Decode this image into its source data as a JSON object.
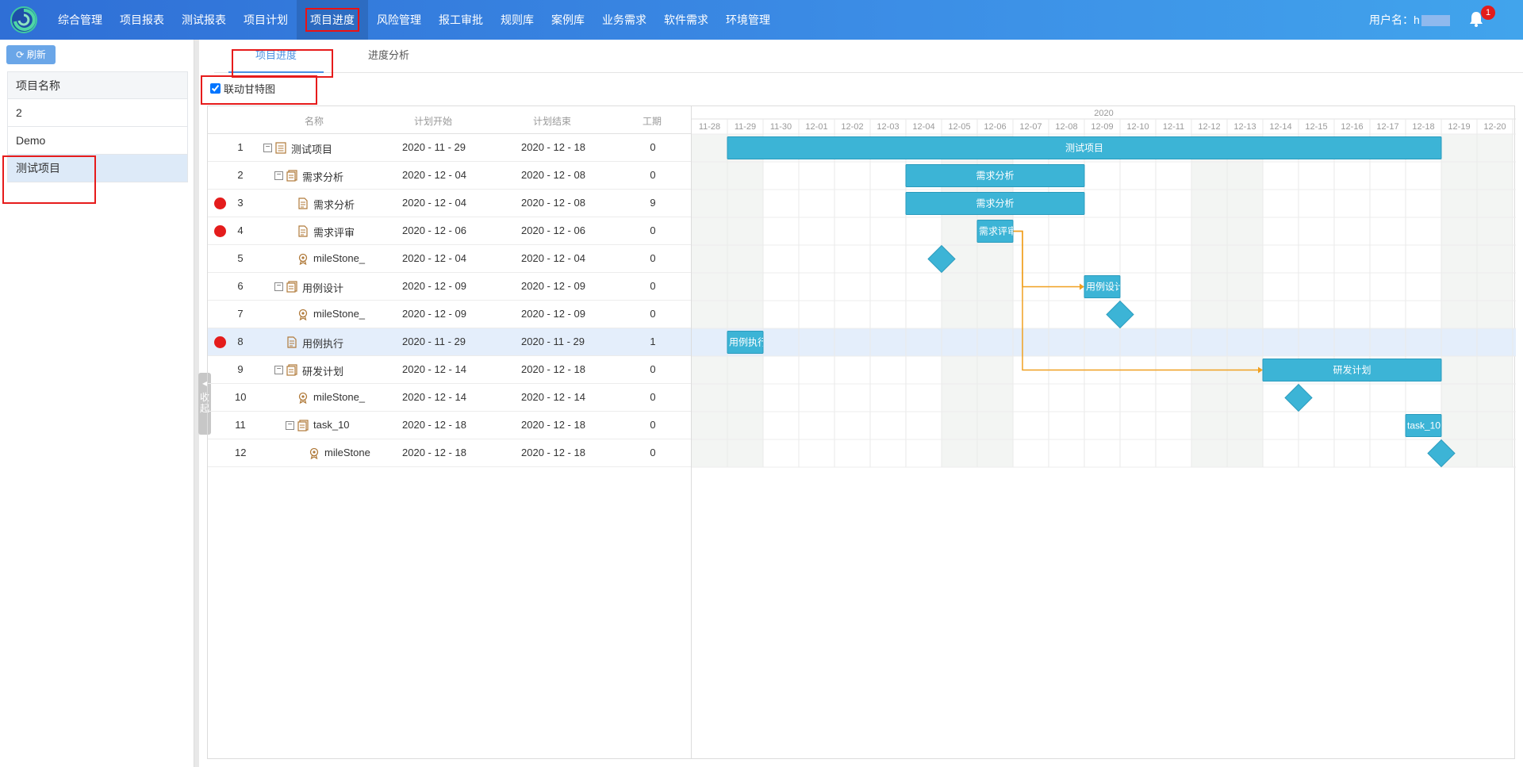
{
  "nav": {
    "items": [
      "综合管理",
      "项目报表",
      "测试报表",
      "项目计划",
      "项目进度",
      "风险管理",
      "报工审批",
      "规则库",
      "案例库",
      "业务需求",
      "软件需求",
      "环境管理"
    ],
    "active_index": 4,
    "user_label": "用户名：h",
    "notification_count": "1"
  },
  "left": {
    "refresh_label": "刷新",
    "list_header": "项目名称",
    "projects": [
      "2",
      "Demo",
      "测试项目"
    ],
    "selected_index": 2,
    "collapse_label": "收起"
  },
  "tabs": [
    "项目进度",
    "进度分析"
  ],
  "link_gantt_label": "联动甘特图",
  "link_gantt_checked": true,
  "grid": {
    "headers": {
      "name": "名称",
      "start": "计划开始",
      "end": "计划结束",
      "duration": "工期"
    },
    "rows": [
      {
        "num": "1",
        "level": 0,
        "expander": "⊟",
        "type": "project",
        "name": "测试项目",
        "start": "2020 - 11 - 29",
        "end": "2020 - 12 - 18",
        "duration": "0",
        "flag": false
      },
      {
        "num": "2",
        "level": 1,
        "expander": "⊟",
        "type": "group",
        "name": "需求分析",
        "start": "2020 - 12 - 04",
        "end": "2020 - 12 - 08",
        "duration": "0",
        "flag": false
      },
      {
        "num": "3",
        "level": 2,
        "expander": "",
        "type": "task",
        "name": "需求分析",
        "start": "2020 - 12 - 04",
        "end": "2020 - 12 - 08",
        "duration": "9",
        "flag": true
      },
      {
        "num": "4",
        "level": 2,
        "expander": "",
        "type": "task",
        "name": "需求评审",
        "start": "2020 - 12 - 06",
        "end": "2020 - 12 - 06",
        "duration": "0",
        "flag": true
      },
      {
        "num": "5",
        "level": 2,
        "expander": "",
        "type": "milestone",
        "name": "mileStone_",
        "start": "2020 - 12 - 04",
        "end": "2020 - 12 - 04",
        "duration": "0",
        "flag": false
      },
      {
        "num": "6",
        "level": 1,
        "expander": "⊟",
        "type": "group",
        "name": "用例设计",
        "start": "2020 - 12 - 09",
        "end": "2020 - 12 - 09",
        "duration": "0",
        "flag": false
      },
      {
        "num": "7",
        "level": 2,
        "expander": "",
        "type": "milestone",
        "name": "mileStone_",
        "start": "2020 - 12 - 09",
        "end": "2020 - 12 - 09",
        "duration": "0",
        "flag": false
      },
      {
        "num": "8",
        "level": 1,
        "expander": "",
        "type": "task",
        "name": "用例执行",
        "start": "2020 - 11 - 29",
        "end": "2020 - 11 - 29",
        "duration": "1",
        "flag": true
      },
      {
        "num": "9",
        "level": 1,
        "expander": "⊟",
        "type": "group",
        "name": "研发计划",
        "start": "2020 - 12 - 14",
        "end": "2020 - 12 - 18",
        "duration": "0",
        "flag": false
      },
      {
        "num": "10",
        "level": 2,
        "expander": "",
        "type": "milestone",
        "name": "mileStone_",
        "start": "2020 - 12 - 14",
        "end": "2020 - 12 - 14",
        "duration": "0",
        "flag": false
      },
      {
        "num": "11",
        "level": 2,
        "expander": "⊟",
        "type": "group",
        "name": "task_10",
        "start": "2020 - 12 - 18",
        "end": "2020 - 12 - 18",
        "duration": "0",
        "flag": false
      },
      {
        "num": "12",
        "level": 3,
        "expander": "",
        "type": "milestone",
        "name": "mileStone",
        "start": "2020 - 12 - 18",
        "end": "2020 - 12 - 18",
        "duration": "0",
        "flag": false
      }
    ],
    "selected_row": 7
  },
  "gantt": {
    "year": "2020",
    "dates": [
      "11-28",
      "11-29",
      "11-30",
      "12-01",
      "12-02",
      "12-03",
      "12-04",
      "12-05",
      "12-06",
      "12-07",
      "12-08",
      "12-09",
      "12-10",
      "12-11",
      "12-12",
      "12-13",
      "12-14",
      "12-15",
      "12-16",
      "12-17",
      "12-18",
      "12-19",
      "12-20"
    ],
    "weekend_indices": [
      0,
      1,
      7,
      8,
      14,
      15,
      21,
      22
    ],
    "bars": [
      {
        "row": 0,
        "kind": "bar",
        "start_day": 1,
        "end_day": 21,
        "label": "测试项目"
      },
      {
        "row": 1,
        "kind": "bar",
        "start_day": 6,
        "end_day": 11,
        "label": "需求分析"
      },
      {
        "row": 2,
        "kind": "bar",
        "start_day": 6,
        "end_day": 11,
        "label": "需求分析"
      },
      {
        "row": 3,
        "kind": "bar",
        "start_day": 8,
        "end_day": 9,
        "label": "需求评审"
      },
      {
        "row": 4,
        "kind": "milestone",
        "start_day": 6.7,
        "label": ""
      },
      {
        "row": 5,
        "kind": "bar",
        "start_day": 11,
        "end_day": 12,
        "label": "用例设计"
      },
      {
        "row": 6,
        "kind": "milestone",
        "start_day": 11.7,
        "label": ""
      },
      {
        "row": 7,
        "kind": "bar",
        "start_day": 1,
        "end_day": 2,
        "label": "用例执行"
      },
      {
        "row": 8,
        "kind": "bar",
        "start_day": 16,
        "end_day": 21,
        "label": "研发计划"
      },
      {
        "row": 9,
        "kind": "milestone",
        "start_day": 16.7,
        "label": ""
      },
      {
        "row": 10,
        "kind": "bar",
        "start_day": 20,
        "end_day": 21,
        "label": "task_10"
      },
      {
        "row": 11,
        "kind": "milestone",
        "start_day": 20.7,
        "label": ""
      }
    ],
    "links": [
      {
        "from_row": 3,
        "to_rows": [
          5,
          8
        ]
      }
    ],
    "bar_color": "#3cb4d6",
    "link_color": "#f0a020"
  }
}
